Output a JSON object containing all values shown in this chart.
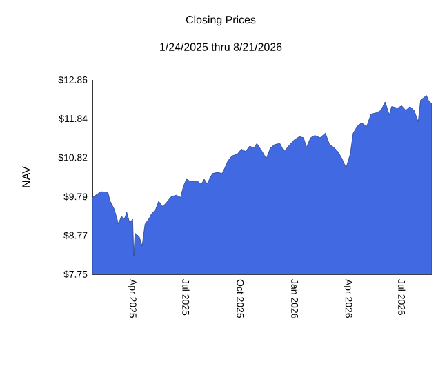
{
  "chart_data": {
    "type": "area",
    "title": "Closing Prices",
    "subtitle": "1/24/2025 thru 8/21/2026",
    "ylabel": "NAV",
    "x": [
      "2025-01-24",
      "2025-02-07",
      "2025-02-19",
      "2025-02-23",
      "2025-03-02",
      "2025-03-09",
      "2025-03-14",
      "2025-03-19",
      "2025-03-23",
      "2025-03-28",
      "2025-04-02",
      "2025-04-04",
      "2025-04-06",
      "2025-04-13",
      "2025-04-18",
      "2025-04-23",
      "2025-04-30",
      "2025-05-04",
      "2025-05-11",
      "2025-05-16",
      "2025-05-23",
      "2025-05-30",
      "2025-06-06",
      "2025-06-15",
      "2025-06-22",
      "2025-06-27",
      "2025-07-02",
      "2025-07-09",
      "2025-07-20",
      "2025-07-27",
      "2025-08-01",
      "2025-08-06",
      "2025-08-15",
      "2025-08-24",
      "2025-08-31",
      "2025-09-05",
      "2025-09-10",
      "2025-09-17",
      "2025-09-26",
      "2025-10-03",
      "2025-10-10",
      "2025-10-17",
      "2025-10-24",
      "2025-10-29",
      "2025-11-07",
      "2025-11-14",
      "2025-11-21",
      "2025-11-28",
      "2025-12-07",
      "2025-12-14",
      "2025-12-24",
      "2025-12-31",
      "2026-01-09",
      "2026-01-16",
      "2026-01-21",
      "2026-01-28",
      "2026-02-04",
      "2026-02-13",
      "2026-02-22",
      "2026-03-01",
      "2026-03-08",
      "2026-03-15",
      "2026-03-22",
      "2026-03-29",
      "2026-04-05",
      "2026-04-10",
      "2026-04-17",
      "2026-04-24",
      "2026-05-03",
      "2026-05-10",
      "2026-05-20",
      "2026-05-27",
      "2026-06-03",
      "2026-06-10",
      "2026-06-14",
      "2026-06-24",
      "2026-07-01",
      "2026-07-08",
      "2026-07-15",
      "2026-07-22",
      "2026-07-29",
      "2026-08-02",
      "2026-08-12",
      "2026-08-16",
      "2026-08-21"
    ],
    "values": [
      9.77,
      9.92,
      9.91,
      9.67,
      9.46,
      9.07,
      9.28,
      9.2,
      9.38,
      9.1,
      9.2,
      8.22,
      8.83,
      8.74,
      8.5,
      9.07,
      9.22,
      9.34,
      9.46,
      9.67,
      9.53,
      9.65,
      9.79,
      9.83,
      9.77,
      10.07,
      10.25,
      10.19,
      10.21,
      10.11,
      10.25,
      10.13,
      10.4,
      10.43,
      10.4,
      10.55,
      10.73,
      10.86,
      10.91,
      11.04,
      10.98,
      11.12,
      11.07,
      11.19,
      10.98,
      10.79,
      11.07,
      11.16,
      11.19,
      10.98,
      11.16,
      11.28,
      11.37,
      11.34,
      11.09,
      11.34,
      11.4,
      11.34,
      11.46,
      11.16,
      11.09,
      10.98,
      10.79,
      10.55,
      10.91,
      11.46,
      11.64,
      11.73,
      11.64,
      11.96,
      12.0,
      12.06,
      12.28,
      11.94,
      12.16,
      12.12,
      12.18,
      12.06,
      12.16,
      12.06,
      11.76,
      12.33,
      12.45,
      12.3,
      12.24
    ],
    "color": "#4169e1",
    "xlim": [
      "2025-01-24",
      "2026-08-21"
    ],
    "xticks": [
      {
        "value": "2025-04-01",
        "label": "Apr  2025"
      },
      {
        "value": "2025-07-01",
        "label": "Jul  2025"
      },
      {
        "value": "2025-10-01",
        "label": "Oct  2025"
      },
      {
        "value": "2026-01-01",
        "label": "Jan  2026"
      },
      {
        "value": "2026-04-01",
        "label": "Apr  2026"
      },
      {
        "value": "2026-07-01",
        "label": "Jul  2026"
      }
    ],
    "ylim": [
      7.75,
      12.86
    ],
    "yticks": [
      {
        "value": 7.75,
        "label": "$7.75"
      },
      {
        "value": 8.77,
        "label": "$8.77"
      },
      {
        "value": 9.79,
        "label": "$9.79"
      },
      {
        "value": 10.82,
        "label": "$10.82"
      },
      {
        "value": 11.84,
        "label": "$11.84"
      },
      {
        "value": 12.86,
        "label": "$12.86"
      }
    ],
    "grid": false,
    "legend": false
  }
}
